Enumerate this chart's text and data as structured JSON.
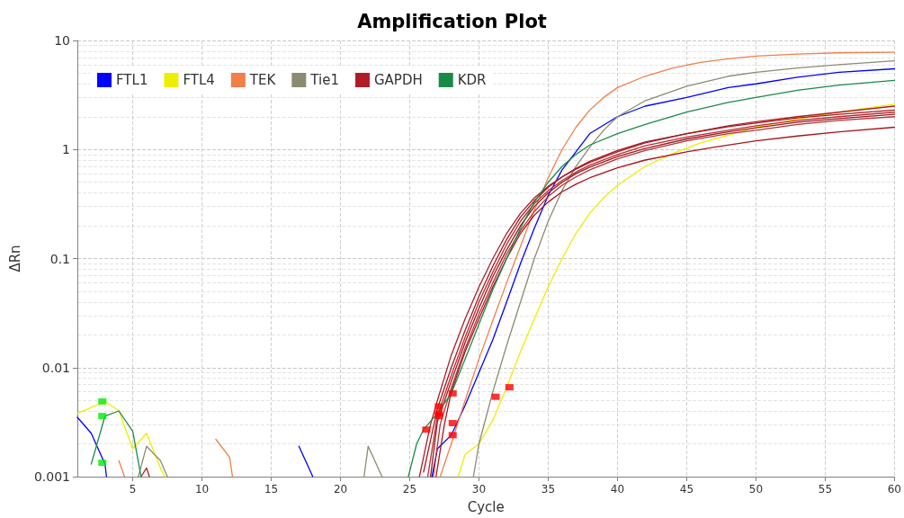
{
  "chart_data": {
    "type": "line",
    "title": "Amplification Plot",
    "xlabel": "Cycle",
    "ylabel": "ΔRn",
    "log": "y",
    "grid": true,
    "legend": "top left",
    "marker": "none",
    "line_style": "solid",
    "xlim": [
      1,
      60
    ],
    "xticks": [
      5,
      10,
      15,
      20,
      25,
      30,
      35,
      40,
      45,
      50,
      55,
      60
    ],
    "ylim": [
      0.001,
      10
    ],
    "yticks": [
      0.001,
      0.01,
      0.1,
      1,
      10
    ],
    "series": [
      {
        "name": "FTL1",
        "color": "#0000ff",
        "x": [
          1,
          2,
          3,
          3.1,
          3.2,
          17,
          18,
          18.1,
          26.6,
          27,
          28,
          29,
          30,
          31,
          32,
          33,
          34,
          35,
          36,
          37,
          38,
          40,
          42,
          45,
          48,
          50,
          53,
          56,
          60
        ],
        "values": [
          0.0035,
          0.0025,
          0.0013,
          0.001,
          null,
          0.0019,
          0.001,
          null,
          0.001,
          0.0018,
          0.0024,
          0.0045,
          0.009,
          0.018,
          0.04,
          0.09,
          0.19,
          0.38,
          0.65,
          0.95,
          1.4,
          2.0,
          2.5,
          3.0,
          3.7,
          4.0,
          4.6,
          5.1,
          5.5
        ]
      },
      {
        "name": "FTL4",
        "color": "#eeee00",
        "x": [
          1,
          2,
          3,
          4,
          5,
          6,
          7,
          7.3,
          7.4,
          28.5,
          29,
          30,
          31,
          32,
          33,
          34,
          35,
          36,
          37,
          38,
          39,
          40,
          42,
          44,
          46,
          48,
          50,
          53,
          56,
          60
        ],
        "values": [
          0.0038,
          0.0043,
          0.0049,
          0.004,
          0.0018,
          0.0025,
          0.0012,
          0.001,
          null,
          0.001,
          0.0016,
          0.002,
          0.0033,
          0.0066,
          0.014,
          0.028,
          0.055,
          0.1,
          0.17,
          0.26,
          0.36,
          0.47,
          0.7,
          0.92,
          1.15,
          1.35,
          1.6,
          1.9,
          2.2,
          2.6
        ]
      },
      {
        "name": "TEK",
        "color": "#f07f4a",
        "x": [
          4,
          4.4,
          4.5,
          11,
          12,
          12.2,
          12.3,
          27.2,
          28,
          29,
          30,
          31,
          32,
          33,
          34,
          35,
          36,
          37,
          38,
          39,
          40,
          42,
          44,
          46,
          48,
          50,
          53,
          56,
          60
        ],
        "values": [
          0.0014,
          0.001,
          null,
          0.0022,
          0.0015,
          0.001,
          null,
          0.001,
          0.002,
          0.005,
          0.012,
          0.027,
          0.06,
          0.13,
          0.28,
          0.55,
          1.0,
          1.6,
          2.3,
          3.0,
          3.7,
          4.7,
          5.6,
          6.3,
          6.8,
          7.2,
          7.5,
          7.7,
          7.8
        ]
      },
      {
        "name": "Tie1",
        "color": "#8b8b73",
        "x": [
          5.4,
          6,
          7,
          7.5,
          7.6,
          21.7,
          22,
          23,
          23.1,
          29.6,
          30,
          31,
          32,
          33,
          34,
          35,
          36,
          37,
          38,
          39,
          40,
          42,
          45,
          48,
          50,
          53,
          56,
          60
        ],
        "values": [
          0.001,
          0.0019,
          0.0014,
          0.001,
          null,
          0.001,
          0.0019,
          0.001,
          null,
          0.001,
          0.002,
          0.006,
          0.016,
          0.04,
          0.1,
          0.22,
          0.42,
          0.7,
          1.05,
          1.5,
          2.0,
          2.8,
          3.8,
          4.7,
          5.1,
          5.6,
          6.0,
          6.5
        ]
      },
      {
        "name": "GAPDH",
        "color": "#b01c24",
        "x": [
          5.6,
          6,
          6.2,
          6.3,
          25.7,
          26.5,
          27,
          28,
          29,
          30,
          31,
          32,
          33,
          34,
          35,
          36,
          37,
          38,
          40,
          42,
          45,
          48,
          50,
          53,
          56,
          60
        ],
        "values": [
          0.001,
          0.0012,
          0.001,
          null,
          0.001,
          0.003,
          0.005,
          0.013,
          0.028,
          0.055,
          0.1,
          0.17,
          0.26,
          0.36,
          0.46,
          0.56,
          0.66,
          0.76,
          0.95,
          1.15,
          1.4,
          1.65,
          1.8,
          2.0,
          2.2,
          2.5
        ]
      },
      {
        "color": "#a01820",
        "x": [
          26,
          27,
          28,
          29,
          30,
          31,
          32,
          33,
          34,
          35,
          36,
          37,
          38,
          40,
          42,
          45,
          48,
          50,
          53,
          56,
          60
        ],
        "values": [
          0.0011,
          0.0042,
          0.01,
          0.022,
          0.045,
          0.085,
          0.15,
          0.24,
          0.34,
          0.45,
          0.56,
          0.67,
          0.78,
          0.98,
          1.17,
          1.4,
          1.62,
          1.75,
          1.95,
          2.1,
          2.3
        ]
      },
      {
        "color": "#c0282e",
        "x": [
          26.3,
          27,
          28,
          29,
          30,
          31,
          32,
          33,
          34,
          35,
          36,
          37,
          38,
          40,
          42,
          45,
          48,
          50,
          53,
          56,
          60
        ],
        "values": [
          0.001,
          0.0036,
          0.0085,
          0.019,
          0.04,
          0.075,
          0.135,
          0.22,
          0.32,
          0.42,
          0.52,
          0.62,
          0.72,
          0.9,
          1.08,
          1.3,
          1.5,
          1.65,
          1.85,
          2.0,
          2.2
        ]
      },
      {
        "color": "#961a20",
        "x": [
          26.5,
          27,
          28,
          29,
          30,
          31,
          32,
          33,
          34,
          35,
          36,
          37,
          38,
          40,
          42,
          45,
          48,
          50,
          53,
          56,
          60
        ],
        "values": [
          0.001,
          0.0032,
          0.0075,
          0.017,
          0.035,
          0.068,
          0.12,
          0.2,
          0.3,
          0.4,
          0.5,
          0.6,
          0.69,
          0.86,
          1.02,
          1.25,
          1.45,
          1.58,
          1.78,
          1.92,
          2.1
        ]
      },
      {
        "color": "#b83036",
        "x": [
          26.7,
          27.2,
          28,
          29,
          30,
          31,
          32,
          33,
          34,
          35,
          36,
          37,
          38,
          40,
          42,
          45,
          48,
          50,
          53,
          56,
          60
        ],
        "values": [
          0.001,
          0.003,
          0.0065,
          0.015,
          0.031,
          0.06,
          0.11,
          0.18,
          0.27,
          0.37,
          0.47,
          0.56,
          0.65,
          0.82,
          0.98,
          1.2,
          1.4,
          1.5,
          1.7,
          1.85,
          2.0
        ]
      },
      {
        "color": "#a8141c",
        "x": [
          26.9,
          27.5,
          28,
          29,
          30,
          31,
          32,
          33,
          34,
          35,
          36,
          37,
          38,
          40,
          42,
          45,
          47,
          50,
          53,
          56,
          60
        ],
        "values": [
          0.001,
          0.003,
          0.006,
          0.014,
          0.028,
          0.055,
          0.1,
          0.17,
          0.25,
          0.33,
          0.41,
          0.48,
          0.55,
          0.68,
          0.8,
          0.95,
          1.05,
          1.2,
          1.33,
          1.45,
          1.6
        ]
      },
      {
        "color": "#1a8a4a",
        "x": [
          2,
          3,
          4,
          5,
          5.6,
          5.7,
          24.9,
          25.5,
          26,
          27,
          28,
          29,
          30,
          31,
          32,
          33,
          34,
          35,
          36,
          37,
          38,
          40,
          42,
          45,
          48,
          50,
          53,
          56,
          60
        ],
        "values": [
          0.0013,
          0.0036,
          0.004,
          0.0026,
          0.001,
          null,
          0.001,
          0.002,
          0.0027,
          0.0038,
          0.0058,
          0.012,
          0.025,
          0.052,
          0.1,
          0.19,
          0.33,
          0.5,
          0.7,
          0.9,
          1.1,
          1.4,
          1.7,
          2.2,
          2.7,
          3.0,
          3.5,
          3.9,
          4.3
        ],
        "name": "KDR"
      },
      {
        "type": "scatter",
        "marker": "square",
        "color": "#ff0000",
        "x": [
          26.2,
          27.1,
          27.1,
          27.1,
          28.1,
          28.1,
          28.1,
          31.2,
          32.2
        ],
        "values": [
          0.0027,
          0.0044,
          0.0038,
          0.0036,
          0.0058,
          0.0031,
          0.0024,
          0.0054,
          0.0066
        ]
      },
      {
        "type": "scatter",
        "marker": "square",
        "color": "#00ee00",
        "x": [
          2.8,
          2.8,
          2.8
        ],
        "values": [
          0.0049,
          0.0036,
          0.00134
        ]
      }
    ]
  }
}
